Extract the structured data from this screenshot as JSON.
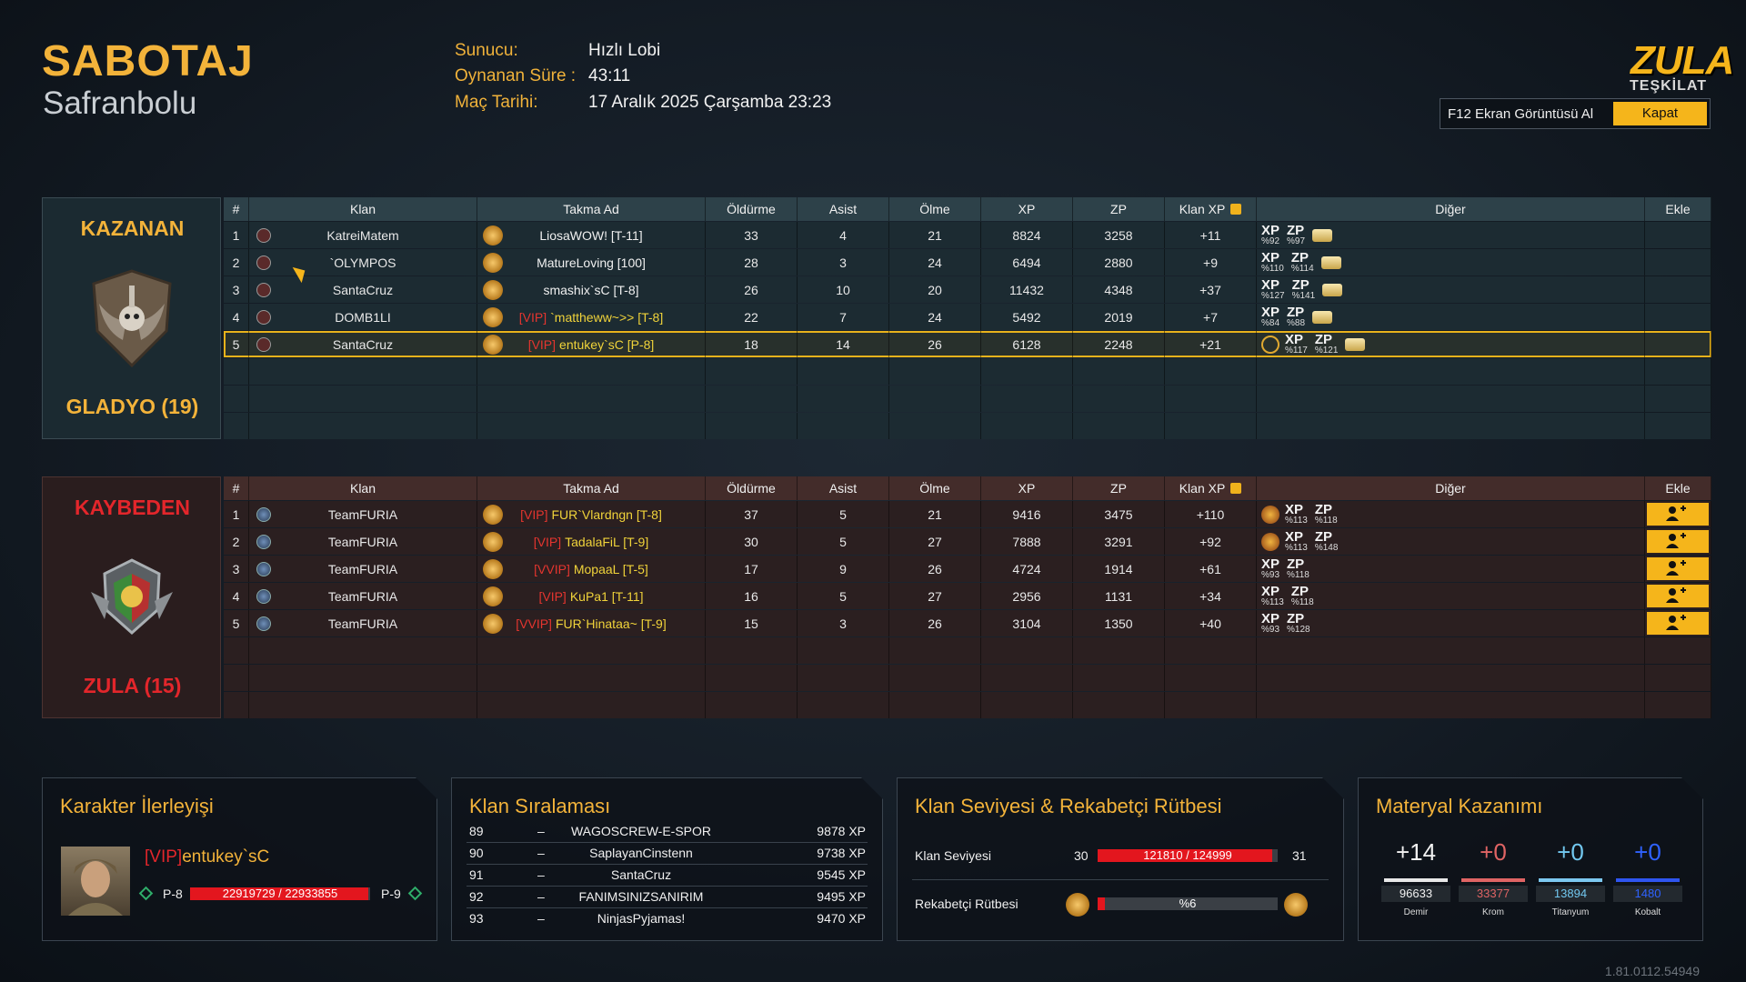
{
  "header": {
    "mode": "SABOTAJ",
    "map": "Safranbolu",
    "info": [
      {
        "label": "Sunucu:",
        "value": "Hızlı Lobi"
      },
      {
        "label": "Oynanan Süre :",
        "value": "43:11"
      },
      {
        "label": "Maç Tarihi:",
        "value": "17 Aralık 2025 Çarşamba 23:23"
      }
    ],
    "logo": {
      "line1": "ZULA",
      "line2": "TEŞKİLAT"
    },
    "screenshot_button": "F12 Ekran Görüntüsü Al",
    "close_button": "Kapat"
  },
  "scoreboard": {
    "columns": [
      "#",
      "Klan",
      "Takma Ad",
      "Öldürme",
      "Asist",
      "Ölme",
      "XP",
      "ZP",
      "Klan XP",
      "Diğer",
      "Ekle"
    ],
    "bonus_labels": [
      "XP",
      "ZP"
    ],
    "teams": [
      {
        "result": "KAZANAN",
        "name": "GLADYO (19)",
        "rows": [
          {
            "rank": 1,
            "clan": "KatreiMatem",
            "nick": "LiosaWOW! [T-11]",
            "kills": 33,
            "assists": 4,
            "deaths": 21,
            "xp": 8824,
            "zp": 3258,
            "clan_xp": "+11",
            "xp_bonus": "%92",
            "zp_bonus": "%97"
          },
          {
            "rank": 2,
            "clan": "`OLYMPOS",
            "nick": "MatureLoving [100]",
            "kills": 28,
            "assists": 3,
            "deaths": 24,
            "xp": 6494,
            "zp": 2880,
            "clan_xp": "+9",
            "xp_bonus": "%110",
            "zp_bonus": "%114"
          },
          {
            "rank": 3,
            "clan": "SantaCruz",
            "nick": "smashix`sC [T-8]",
            "kills": 26,
            "assists": 10,
            "deaths": 20,
            "xp": 11432,
            "zp": 4348,
            "clan_xp": "+37",
            "xp_bonus": "%127",
            "zp_bonus": "%141"
          },
          {
            "rank": 4,
            "clan": "DOMB1LI",
            "vip": "[VIP]",
            "nick": "`mattheww~>> [T-8]",
            "kills": 22,
            "assists": 7,
            "deaths": 24,
            "xp": 5492,
            "zp": 2019,
            "clan_xp": "+7",
            "xp_bonus": "%84",
            "zp_bonus": "%88"
          },
          {
            "rank": 5,
            "clan": "SantaCruz",
            "vip": "[VIP]",
            "nick": "entukey`sC [P-8]",
            "kills": 18,
            "assists": 14,
            "deaths": 26,
            "xp": 6128,
            "zp": 2248,
            "clan_xp": "+21",
            "xp_bonus": "%117",
            "zp_bonus": "%121"
          }
        ]
      },
      {
        "result": "KAYBEDEN",
        "name": "ZULA (15)",
        "rows": [
          {
            "rank": 1,
            "clan": "TeamFURIA",
            "vip": "[VIP]",
            "nick": "FUR`Vlardngn [T-8]",
            "kills": 37,
            "assists": 5,
            "deaths": 21,
            "xp": 9416,
            "zp": 3475,
            "clan_xp": "+110",
            "xp_bonus": "%113",
            "zp_bonus": "%118"
          },
          {
            "rank": 2,
            "clan": "TeamFURIA",
            "vip": "[VIP]",
            "nick": "TadalaFiL [T-9]",
            "kills": 30,
            "assists": 5,
            "deaths": 27,
            "xp": 7888,
            "zp": 3291,
            "clan_xp": "+92",
            "xp_bonus": "%113",
            "zp_bonus": "%148"
          },
          {
            "rank": 3,
            "clan": "TeamFURIA",
            "vip": "[VVIP]",
            "nick": "MopaaL [T-5]",
            "kills": 17,
            "assists": 9,
            "deaths": 26,
            "xp": 4724,
            "zp": 1914,
            "clan_xp": "+61",
            "xp_bonus": "%93",
            "zp_bonus": "%118"
          },
          {
            "rank": 4,
            "clan": "TeamFURIA",
            "vip": "[VIP]",
            "nick": "KuPa1 [T-11]",
            "kills": 16,
            "assists": 5,
            "deaths": 27,
            "xp": 2956,
            "zp": 1131,
            "clan_xp": "+34",
            "xp_bonus": "%113",
            "zp_bonus": "%118"
          },
          {
            "rank": 5,
            "clan": "TeamFURIA",
            "vip": "[VVIP]",
            "nick": "FUR`Hinataa~ [T-9]",
            "kills": 15,
            "assists": 3,
            "deaths": 26,
            "xp": 3104,
            "zp": 1350,
            "clan_xp": "+40",
            "xp_bonus": "%93",
            "zp_bonus": "%128"
          }
        ]
      }
    ]
  },
  "character": {
    "title": "Karakter İlerleyişi",
    "vip": "[VIP]",
    "name": "entukey`sC",
    "level_from": "P-8",
    "level_to": "P-9",
    "progress": "22919729 / 22933855"
  },
  "clan_ranking": {
    "title": "Klan Sıralaması",
    "rows": [
      [
        89,
        "–",
        "WAGOSCREW-E-SPOR",
        "9878 XP"
      ],
      [
        90,
        "–",
        "SaplayanCinstenn",
        "9738 XP"
      ],
      [
        91,
        "–",
        "SantaCruz",
        "9545 XP"
      ],
      [
        92,
        "–",
        "FANIMSINIZSANIRIM",
        "9495 XP"
      ],
      [
        93,
        "–",
        "NinjasPyjamas!",
        "9470 XP"
      ]
    ]
  },
  "clan_level": {
    "title": "Klan Seviyesi & Rekabetçi Rütbesi",
    "level_label": "Klan Seviyesi",
    "level_from": 30,
    "level_to": 31,
    "level_progress": "121810 / 124999",
    "rank_label": "Rekabetçi Rütbesi",
    "rank_progress": "%6"
  },
  "materials": {
    "title": "Materyal Kazanımı",
    "items": [
      {
        "gain": "+14",
        "total": 96633,
        "name": "Demir"
      },
      {
        "gain": "+0",
        "total": 33377,
        "name": "Krom"
      },
      {
        "gain": "+0",
        "total": 13894,
        "name": "Titanyum"
      },
      {
        "gain": "+0",
        "total": 1480,
        "name": "Kobalt"
      }
    ]
  },
  "version": "1.81.0112.54949"
}
